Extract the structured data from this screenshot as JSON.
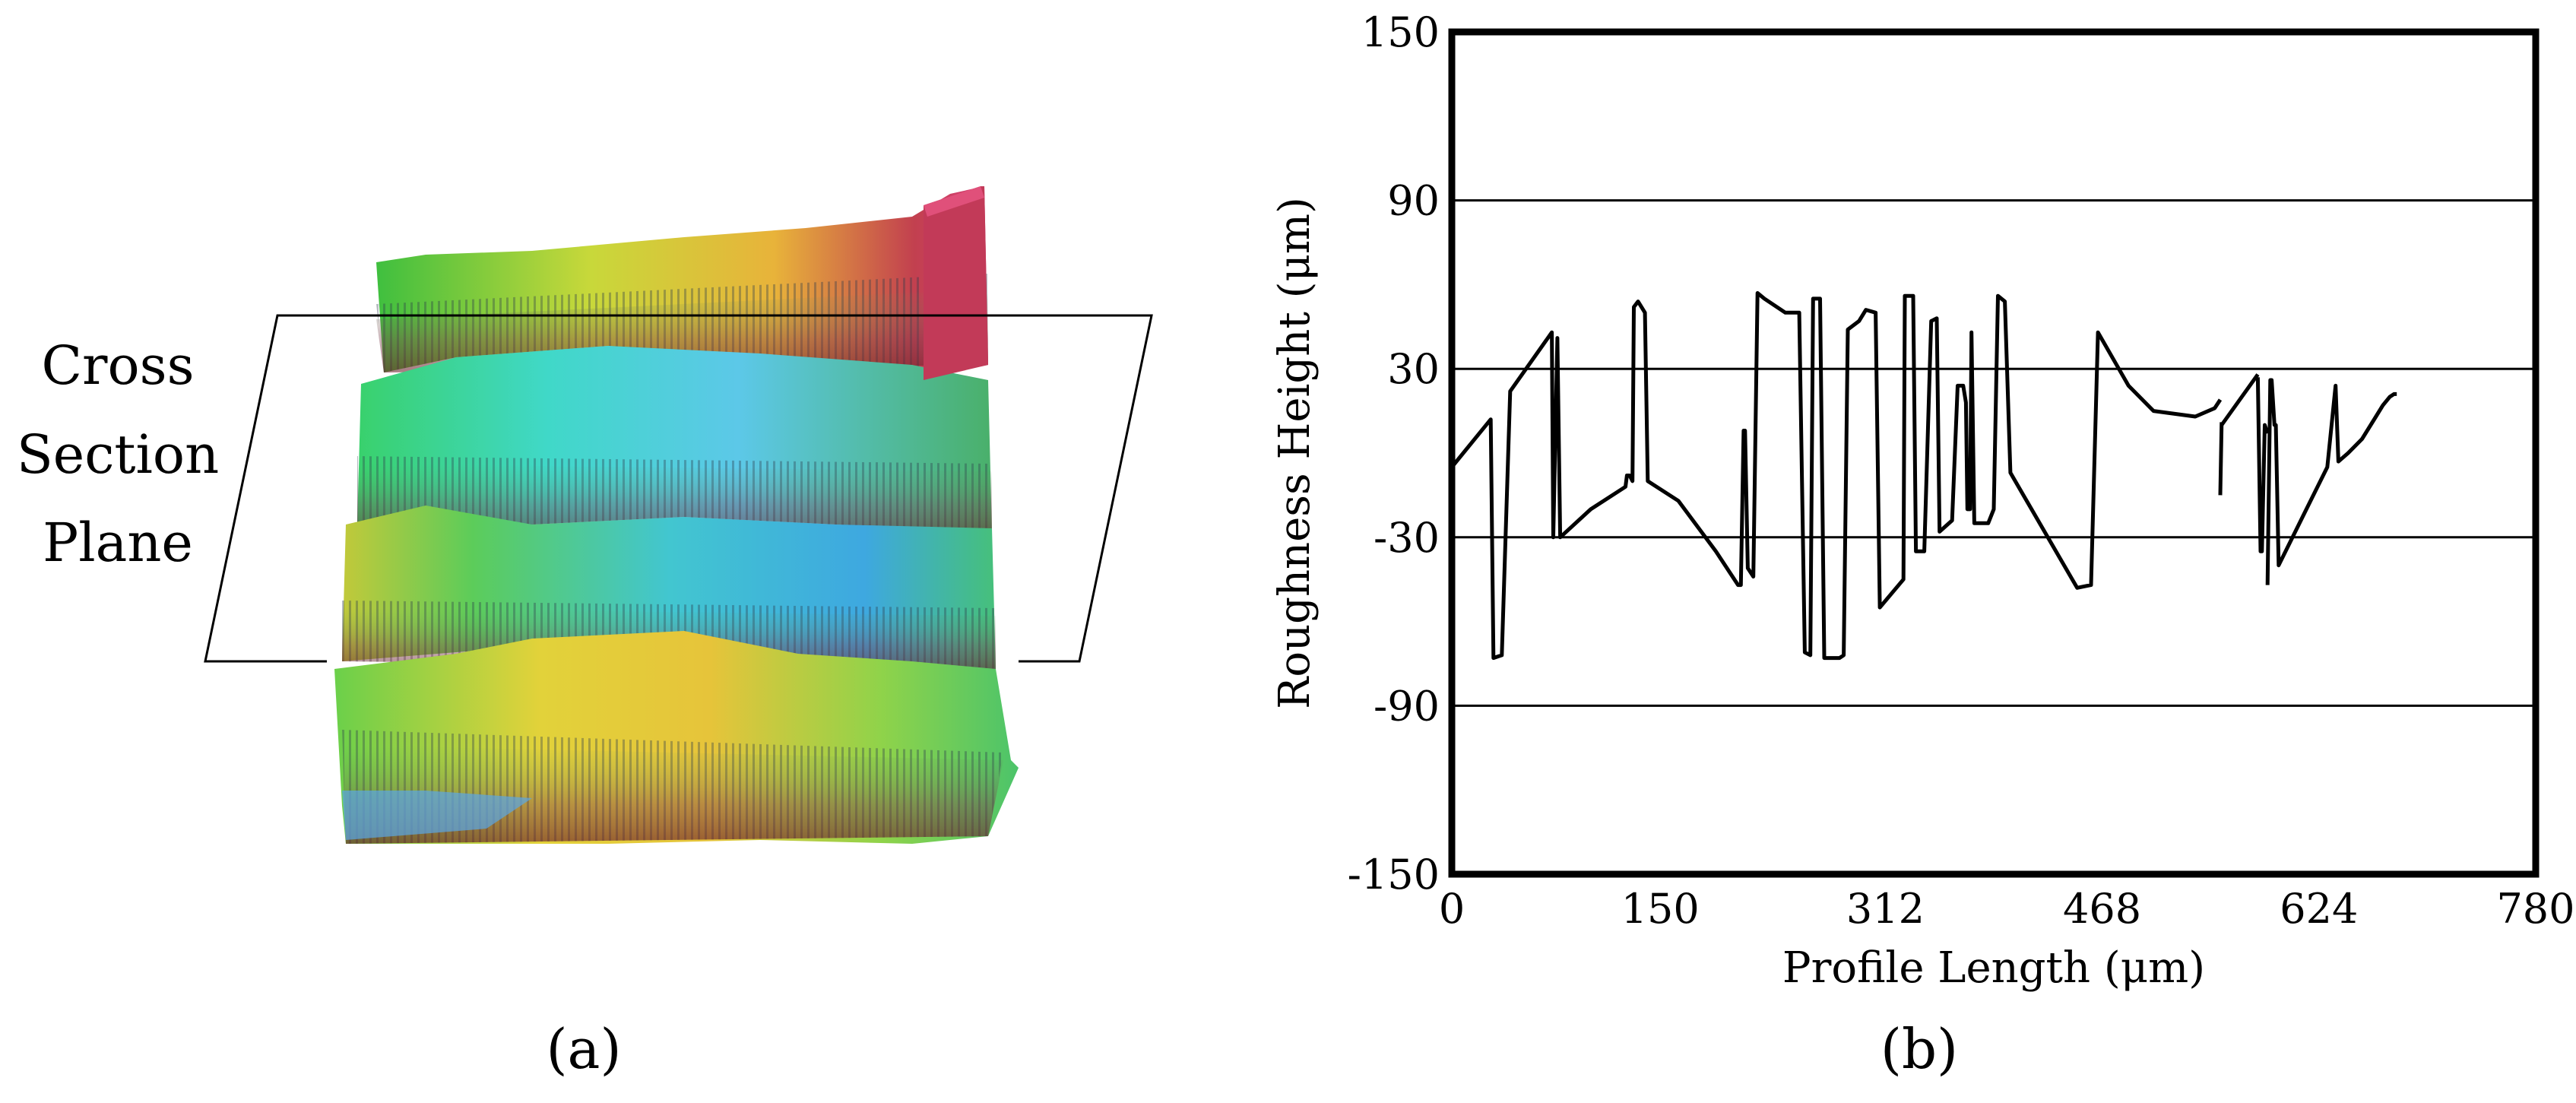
{
  "panel_a": {
    "label_text": "(a)",
    "annotation_lines": [
      "Cross",
      "Section",
      "Plane"
    ]
  },
  "panel_b": {
    "label_text": "(b)"
  },
  "chart_data": {
    "type": "line",
    "title": "",
    "xlabel": "Profile Length (μm)",
    "ylabel": "Roughness Height (μm)",
    "xlim": [
      0,
      780
    ],
    "ylim": [
      -150,
      150
    ],
    "x_ticks": [
      "0",
      "150",
      "312",
      "468",
      "624",
      "780"
    ],
    "x_tick_values": [
      0,
      150,
      312,
      468,
      624,
      780
    ],
    "y_ticks": [
      "150",
      "90",
      "30",
      "-30",
      "-90",
      "-150"
    ],
    "y_tick_values": [
      150,
      90,
      30,
      -30,
      -90,
      -150
    ],
    "horizontal_gridlines": [
      90,
      30,
      -30,
      -90
    ],
    "series": [
      {
        "segments": [
          [
            [
              0,
              -5
            ],
            [
              28,
              12
            ],
            [
              30,
              -73
            ],
            [
              36,
              -72
            ],
            [
              42,
              22
            ],
            [
              72,
              43
            ],
            [
              73,
              -30
            ],
            [
              76,
              41
            ],
            [
              78,
              -30
            ],
            [
              100,
              -20
            ],
            [
              125,
              -12
            ],
            [
              126,
              -8
            ],
            [
              128,
              -8
            ],
            [
              130,
              -10
            ],
            [
              131,
              52
            ],
            [
              134,
              54
            ],
            [
              139,
              50
            ],
            [
              141,
              -10
            ],
            [
              163,
              -17
            ],
            [
              190,
              -35
            ],
            [
              206,
              -47
            ],
            [
              208,
              -47
            ],
            [
              210,
              8
            ],
            [
              211,
              8
            ],
            [
              213,
              -41
            ],
            [
              217,
              -44
            ],
            [
              220,
              57
            ],
            [
              225,
              55
            ],
            [
              240,
              50
            ],
            [
              250,
              50
            ],
            [
              254,
              -71
            ],
            [
              258,
              -72
            ],
            [
              260,
              55
            ],
            [
              265,
              55
            ],
            [
              268,
              -73
            ],
            [
              279,
              -73
            ],
            [
              282,
              -72
            ],
            [
              285,
              44
            ],
            [
              293,
              47
            ],
            [
              298,
              51
            ],
            [
              305,
              50
            ],
            [
              308,
              -55
            ],
            [
              325,
              -45
            ],
            [
              326,
              56
            ],
            [
              332,
              56
            ],
            [
              334,
              -35
            ],
            [
              340,
              -35
            ],
            [
              345,
              47
            ],
            [
              349,
              48
            ],
            [
              351,
              -28
            ],
            [
              360,
              -24
            ],
            [
              364,
              24
            ],
            [
              368,
              24
            ],
            [
              370,
              18
            ],
            [
              371,
              -20
            ],
            [
              373,
              -20
            ],
            [
              374,
              43
            ],
            [
              376,
              -25
            ],
            [
              386,
              -25
            ],
            [
              390,
              -20
            ],
            [
              393,
              56
            ],
            [
              398,
              54
            ],
            [
              402,
              -7
            ],
            [
              450,
              -48
            ],
            [
              460,
              -47
            ],
            [
              465,
              43
            ],
            [
              487,
              24
            ],
            [
              505,
              15
            ],
            [
              535,
              13
            ],
            [
              549,
              16
            ],
            [
              553,
              19
            ]
          ],
          [
            [
              553,
              -15
            ],
            [
              554,
              11
            ]
          ],
          [
            [
              554,
              10
            ],
            [
              580,
              28
            ]
          ],
          [
            [
              580,
              27
            ],
            [
              582,
              -35
            ],
            [
              583,
              -35
            ],
            [
              585,
              10
            ],
            [
              587,
              7
            ]
          ],
          [
            [
              587,
              -47
            ],
            [
              589,
              26
            ],
            [
              590,
              26
            ],
            [
              592,
              10
            ],
            [
              593,
              10
            ],
            [
              595,
              -40
            ],
            [
              615,
              -20
            ],
            [
              630,
              -5
            ],
            [
              636,
              24
            ],
            [
              638,
              -3
            ],
            [
              645,
              0
            ],
            [
              655,
              5
            ],
            [
              665,
              13
            ],
            [
              670,
              17
            ],
            [
              675,
              20
            ],
            [
              678,
              21
            ],
            [
              680,
              21
            ]
          ]
        ]
      }
    ]
  }
}
